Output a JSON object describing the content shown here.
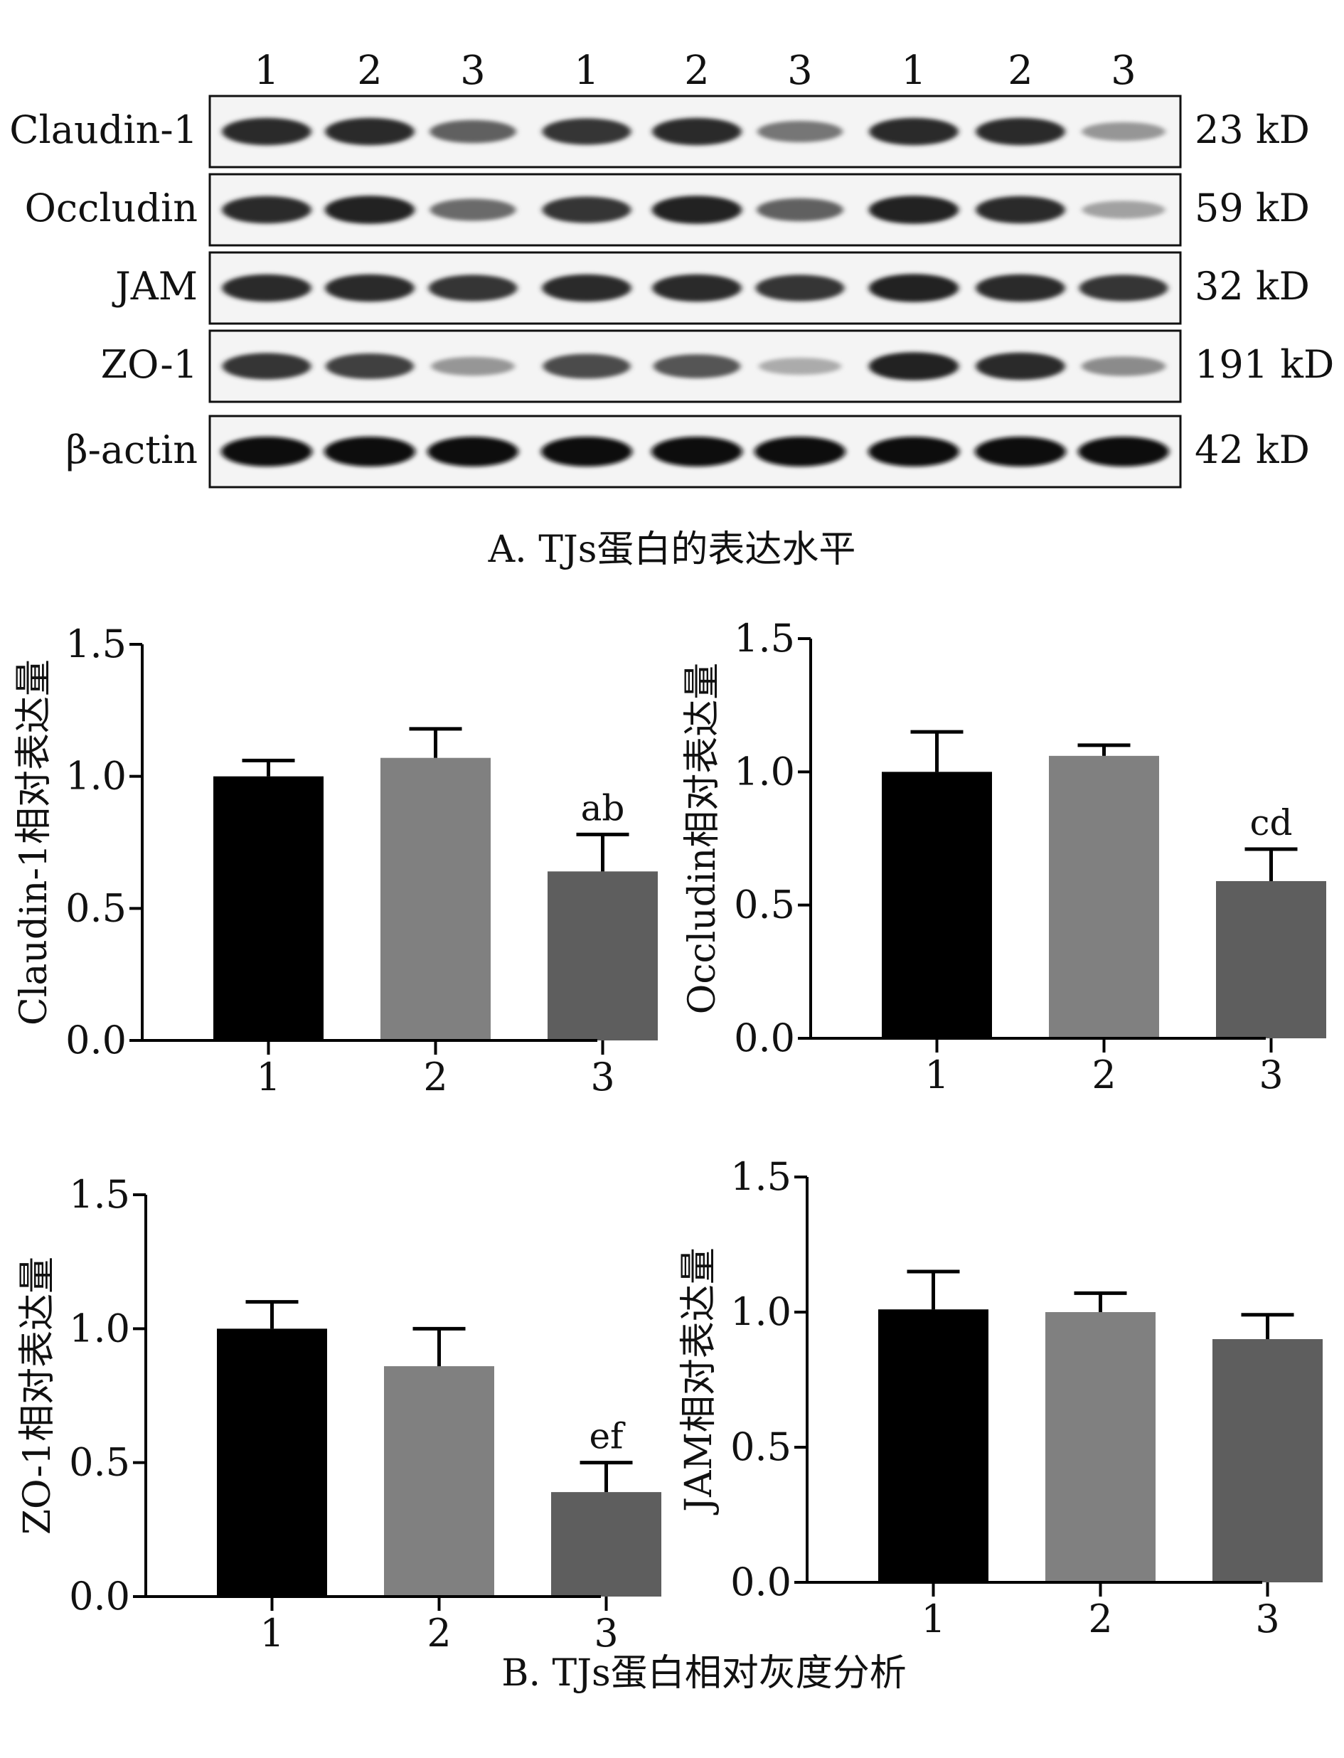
{
  "blot": {
    "lane_labels": [
      "1",
      "2",
      "3",
      "1",
      "2",
      "3",
      "1",
      "2",
      "3"
    ],
    "rows": [
      {
        "protein": "Claudin-1",
        "size": "23 kD",
        "intensity": [
          0.85,
          0.85,
          0.6,
          0.8,
          0.85,
          0.5,
          0.85,
          0.85,
          0.35
        ]
      },
      {
        "protein": "Occludin",
        "size": "59 kD",
        "intensity": [
          0.85,
          0.9,
          0.55,
          0.8,
          0.9,
          0.6,
          0.9,
          0.85,
          0.3
        ]
      },
      {
        "protein": "JAM",
        "size": "32 kD",
        "intensity": [
          0.85,
          0.85,
          0.8,
          0.85,
          0.85,
          0.8,
          0.9,
          0.85,
          0.8
        ]
      },
      {
        "protein": "ZO-1",
        "size": "191 kD",
        "intensity": [
          0.8,
          0.75,
          0.35,
          0.7,
          0.65,
          0.25,
          0.9,
          0.85,
          0.4
        ]
      },
      {
        "protein": "β-actin",
        "size": "42 kD",
        "intensity": [
          1,
          1,
          1,
          1,
          1,
          1,
          1,
          1,
          1
        ]
      }
    ],
    "caption": "A. TJs蛋白的表达水平"
  },
  "chart_data": [
    {
      "type": "bar",
      "ylabel": "Claudin-1相对表达量",
      "categories": [
        "1",
        "2",
        "3"
      ],
      "values": [
        1.0,
        1.07,
        0.64
      ],
      "errors": [
        0.06,
        0.11,
        0.14
      ],
      "annotations": [
        "",
        "",
        "ab"
      ],
      "ylim": [
        0,
        1.5
      ],
      "yticks": [
        "0.0",
        "0.5",
        "1.0",
        "1.5"
      ],
      "colors": [
        "#000000",
        "#808080",
        "#5e5e5e"
      ]
    },
    {
      "type": "bar",
      "ylabel": "Occludin相对表达量",
      "categories": [
        "1",
        "2",
        "3"
      ],
      "values": [
        1.0,
        1.06,
        0.59
      ],
      "errors": [
        0.15,
        0.04,
        0.12
      ],
      "annotations": [
        "",
        "",
        "cd"
      ],
      "ylim": [
        0,
        1.5
      ],
      "yticks": [
        "0.0",
        "0.5",
        "1.0",
        "1.5"
      ],
      "colors": [
        "#000000",
        "#808080",
        "#5e5e5e"
      ]
    },
    {
      "type": "bar",
      "ylabel": "ZO-1相对表达量",
      "categories": [
        "1",
        "2",
        "3"
      ],
      "values": [
        1.0,
        0.86,
        0.39
      ],
      "errors": [
        0.1,
        0.14,
        0.11
      ],
      "annotations": [
        "",
        "",
        "ef"
      ],
      "ylim": [
        0,
        1.5
      ],
      "yticks": [
        "0.0",
        "0.5",
        "1.0",
        "1.5"
      ],
      "colors": [
        "#000000",
        "#808080",
        "#5e5e5e"
      ]
    },
    {
      "type": "bar",
      "ylabel": "JAM相对表达量",
      "categories": [
        "1",
        "2",
        "3"
      ],
      "values": [
        1.01,
        1.0,
        0.9
      ],
      "errors": [
        0.14,
        0.07,
        0.09
      ],
      "annotations": [
        "",
        "",
        ""
      ],
      "ylim": [
        0,
        1.5
      ],
      "yticks": [
        "0.0",
        "0.5",
        "1.0",
        "1.5"
      ],
      "colors": [
        "#000000",
        "#808080",
        "#5e5e5e"
      ]
    }
  ],
  "caption_b": "B. TJs蛋白相对灰度分析"
}
